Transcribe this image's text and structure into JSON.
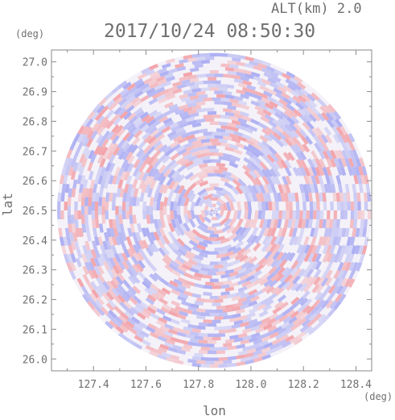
{
  "header": {
    "altitude_label": "ALT(km) 2.0",
    "timestamp": "2017/10/24 08:50:30"
  },
  "chart_data": {
    "type": "heatmap",
    "title": "2017/10/24 08:50:30",
    "subtitle": "ALT(km) 2.0",
    "xlabel": "lon",
    "ylabel": "lat",
    "xunit": "(deg)",
    "yunit": "(deg)",
    "xlim": [
      127.24,
      128.46
    ],
    "ylim": [
      25.96,
      27.04
    ],
    "x_ticks": [
      "127.4",
      "127.6",
      "127.8",
      "128.0",
      "128.2",
      "128.4"
    ],
    "y_ticks": [
      "26.0",
      "26.1",
      "26.2",
      "26.3",
      "26.4",
      "26.5",
      "26.6",
      "26.7",
      "26.8",
      "26.9",
      "27.0"
    ],
    "radar_center": {
      "lon": 127.86,
      "lat": 26.5
    },
    "radar_range_lat_deg": 0.53,
    "color_positive": "#f2a0a6",
    "color_negative": "#a9abf2",
    "grid": false,
    "legend": "none"
  }
}
